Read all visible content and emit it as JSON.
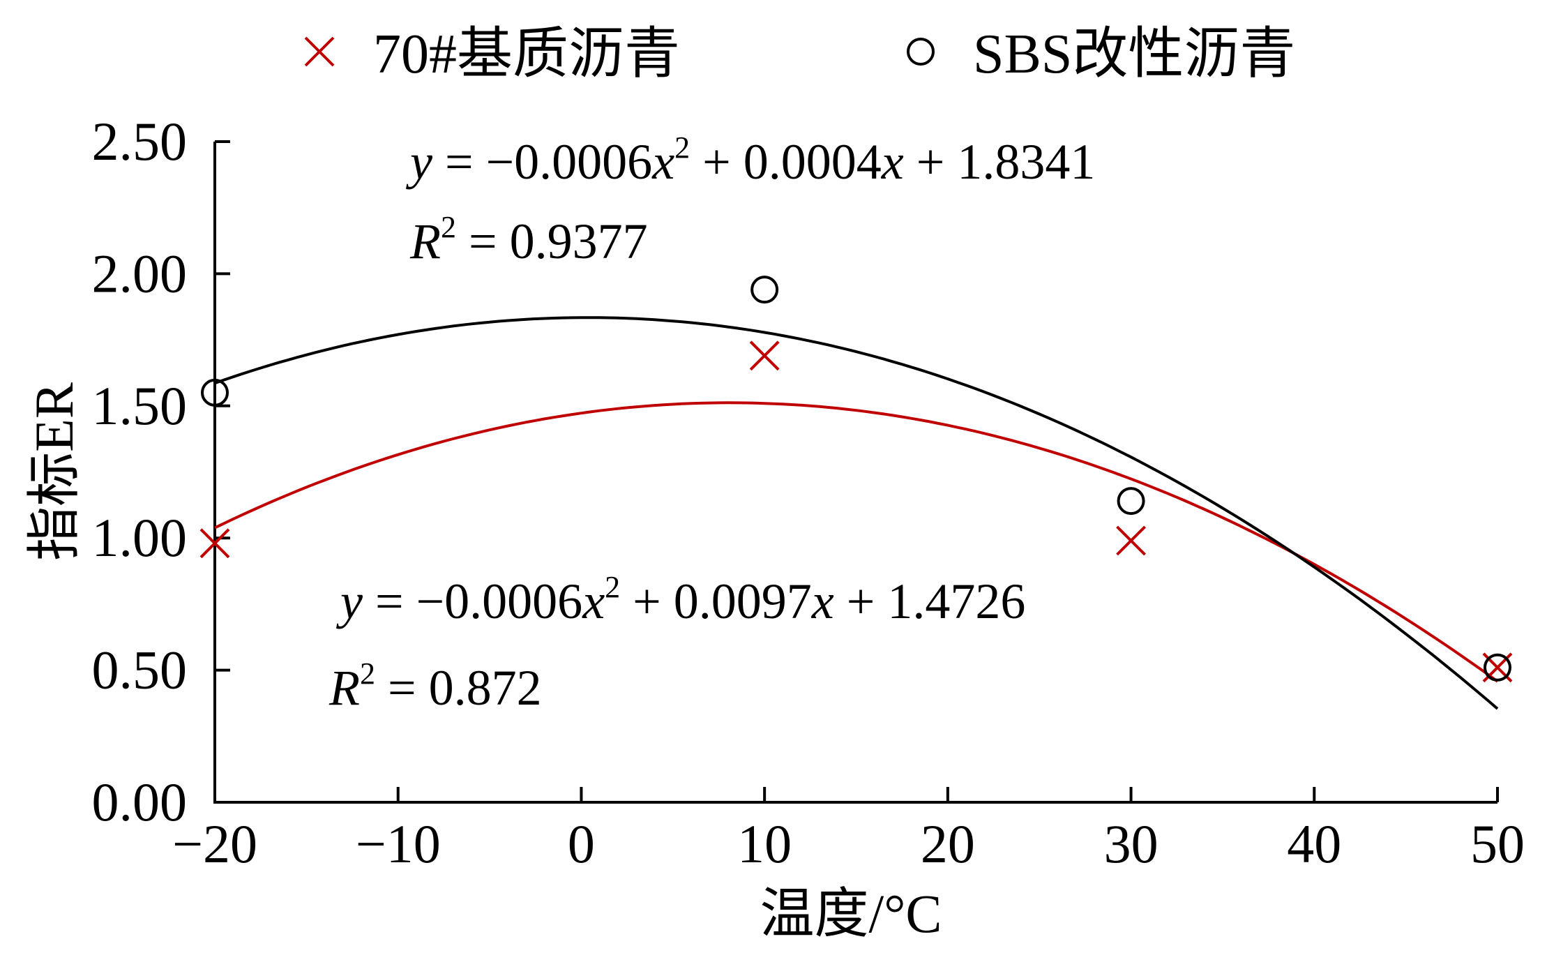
{
  "chart_data": {
    "type": "scatter",
    "xlabel": "温度/°C",
    "ylabel": "指标ER",
    "xlim": [
      -20,
      50
    ],
    "ylim": [
      0,
      2.5
    ],
    "x_ticks": [
      -20,
      -10,
      0,
      10,
      20,
      30,
      40,
      50
    ],
    "x_tick_labels": [
      "−20",
      "−10",
      "0",
      "10",
      "20",
      "30",
      "40",
      "50"
    ],
    "y_ticks": [
      0,
      0.5,
      1.0,
      1.5,
      2.0,
      2.5
    ],
    "y_tick_labels": [
      "0.00",
      "0.50",
      "1.00",
      "1.50",
      "2.00",
      "2.50"
    ],
    "grid": false,
    "legend_position": "top",
    "series": [
      {
        "name": "70#基质沥青",
        "marker": "x",
        "color": "#c00000",
        "x": [
          -20,
          10,
          30,
          50
        ],
        "y": [
          0.98,
          1.69,
          0.99,
          0.51
        ],
        "trendline": {
          "type": "quadratic",
          "coefficients": [
            -0.0006,
            0.0097,
            1.4726
          ],
          "equation_parts": [
            "y",
            " = −0.0006",
            "x",
            "2",
            " + 0.0097",
            "x",
            " + 1.4726"
          ],
          "r2_parts": [
            "R",
            "2",
            " = 0.872"
          ],
          "r2": 0.872
        }
      },
      {
        "name": "SBS改性沥青",
        "marker": "circle",
        "color": "#000000",
        "x": [
          -20,
          10,
          30,
          50
        ],
        "y": [
          1.55,
          1.94,
          1.14,
          0.51
        ],
        "trendline": {
          "type": "quadratic",
          "coefficients": [
            -0.0006,
            0.0004,
            1.8341
          ],
          "equation_parts": [
            "y",
            " = −0.0006",
            "x",
            "2",
            " + 0.0004",
            "x",
            " + 1.8341"
          ],
          "r2_parts": [
            "R",
            "2",
            " = 0.9377"
          ],
          "r2": 0.9377
        }
      }
    ]
  }
}
